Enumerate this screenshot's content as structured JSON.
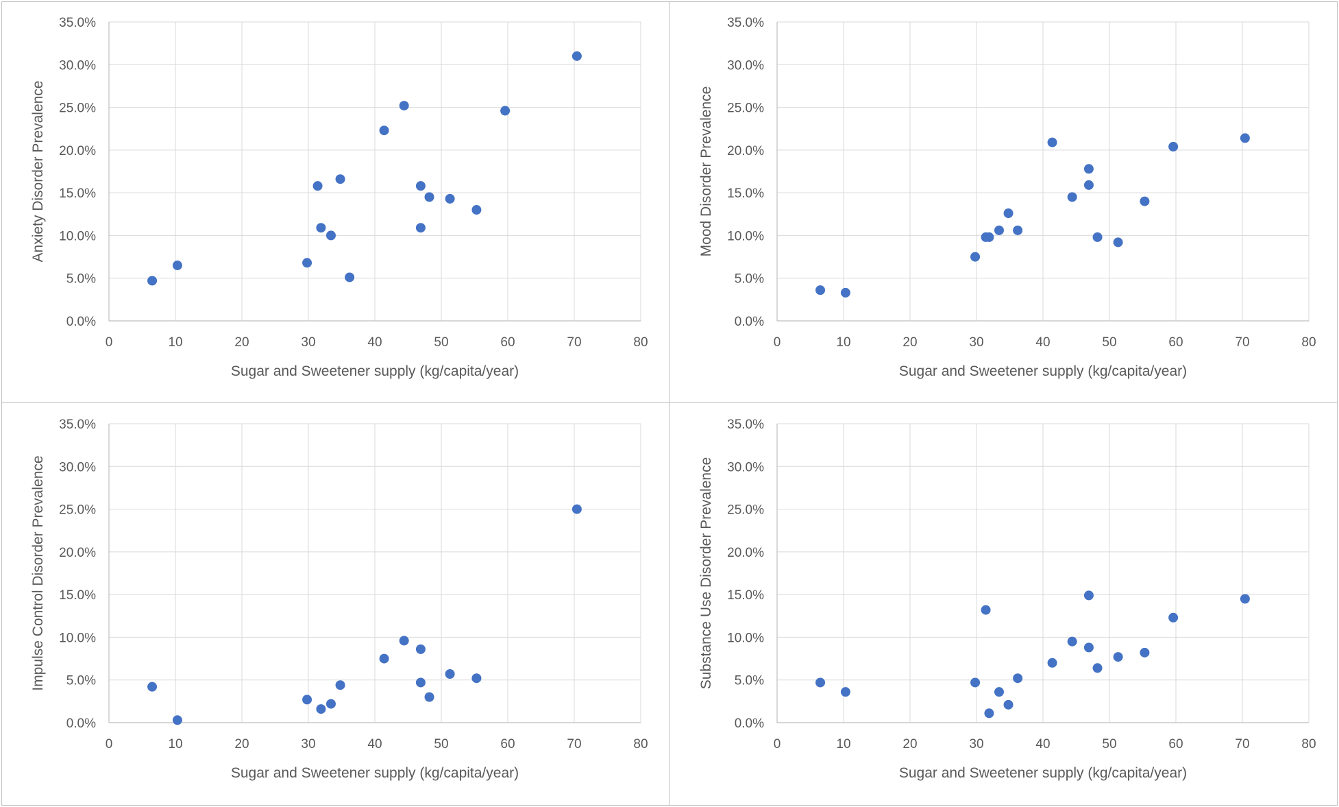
{
  "colors": {
    "marker": "#4472C4",
    "grid": "#d9d9d9",
    "axis": "#bfbfbf",
    "text": "#595959"
  },
  "chart_data": [
    {
      "type": "scatter",
      "title": "",
      "xlabel": "Sugar and Sweetener  supply (kg/capita/year)",
      "ylabel": "Anxiety Disorder Prevalence",
      "xlim": [
        0,
        80
      ],
      "ylim": [
        0,
        0.35
      ],
      "x_ticks": [
        "0",
        "10",
        "20",
        "30",
        "40",
        "50",
        "60",
        "70",
        "80"
      ],
      "y_ticks": [
        "0.0%",
        "5.0%",
        "10.0%",
        "15.0%",
        "20.0%",
        "25.0%",
        "30.0%",
        "35.0%"
      ],
      "points": [
        {
          "x": 6.5,
          "y": 0.047
        },
        {
          "x": 10.3,
          "y": 0.065
        },
        {
          "x": 29.8,
          "y": 0.068
        },
        {
          "x": 31.4,
          "y": 0.158
        },
        {
          "x": 31.9,
          "y": 0.109
        },
        {
          "x": 33.4,
          "y": 0.1
        },
        {
          "x": 34.8,
          "y": 0.166
        },
        {
          "x": 36.2,
          "y": 0.051
        },
        {
          "x": 41.4,
          "y": 0.223
        },
        {
          "x": 44.4,
          "y": 0.252
        },
        {
          "x": 46.9,
          "y": 0.158
        },
        {
          "x": 46.9,
          "y": 0.109
        },
        {
          "x": 48.2,
          "y": 0.145
        },
        {
          "x": 51.3,
          "y": 0.143
        },
        {
          "x": 55.3,
          "y": 0.13
        },
        {
          "x": 59.6,
          "y": 0.246
        },
        {
          "x": 70.4,
          "y": 0.31
        }
      ]
    },
    {
      "type": "scatter",
      "title": "",
      "xlabel": "Sugar and Sweetener  supply (kg/capita/year)",
      "ylabel": "Mood Disorder Prevalence",
      "xlim": [
        0,
        80
      ],
      "ylim": [
        0,
        0.35
      ],
      "x_ticks": [
        "0",
        "10",
        "20",
        "30",
        "40",
        "50",
        "60",
        "70",
        "80"
      ],
      "y_ticks": [
        "0.0%",
        "5.0%",
        "10.0%",
        "15.0%",
        "20.0%",
        "25.0%",
        "30.0%",
        "35.0%"
      ],
      "points": [
        {
          "x": 6.5,
          "y": 0.036
        },
        {
          "x": 10.3,
          "y": 0.033
        },
        {
          "x": 29.8,
          "y": 0.075
        },
        {
          "x": 31.4,
          "y": 0.098
        },
        {
          "x": 31.9,
          "y": 0.098
        },
        {
          "x": 33.4,
          "y": 0.106
        },
        {
          "x": 34.8,
          "y": 0.126
        },
        {
          "x": 36.2,
          "y": 0.106
        },
        {
          "x": 41.4,
          "y": 0.209
        },
        {
          "x": 44.4,
          "y": 0.145
        },
        {
          "x": 46.9,
          "y": 0.178
        },
        {
          "x": 46.9,
          "y": 0.159
        },
        {
          "x": 48.2,
          "y": 0.098
        },
        {
          "x": 51.3,
          "y": 0.092
        },
        {
          "x": 55.3,
          "y": 0.14
        },
        {
          "x": 59.6,
          "y": 0.204
        },
        {
          "x": 70.4,
          "y": 0.214
        }
      ]
    },
    {
      "type": "scatter",
      "title": "",
      "xlabel": "Sugar and Sweetener  supply (kg/capita/year)",
      "ylabel": "Impulse Control Disorder Prevalence",
      "xlim": [
        0,
        80
      ],
      "ylim": [
        0,
        0.35
      ],
      "x_ticks": [
        "0",
        "10",
        "20",
        "30",
        "40",
        "50",
        "60",
        "70",
        "80"
      ],
      "y_ticks": [
        "0.0%",
        "5.0%",
        "10.0%",
        "15.0%",
        "20.0%",
        "25.0%",
        "30.0%",
        "35.0%"
      ],
      "points": [
        {
          "x": 6.5,
          "y": 0.042
        },
        {
          "x": 10.3,
          "y": 0.003
        },
        {
          "x": 29.8,
          "y": 0.027
        },
        {
          "x": 31.9,
          "y": 0.016
        },
        {
          "x": 33.4,
          "y": 0.022
        },
        {
          "x": 34.8,
          "y": 0.044
        },
        {
          "x": 41.4,
          "y": 0.075
        },
        {
          "x": 44.4,
          "y": 0.096
        },
        {
          "x": 46.9,
          "y": 0.086
        },
        {
          "x": 46.9,
          "y": 0.047
        },
        {
          "x": 48.2,
          "y": 0.03
        },
        {
          "x": 51.3,
          "y": 0.057
        },
        {
          "x": 55.3,
          "y": 0.052
        },
        {
          "x": 70.4,
          "y": 0.25
        }
      ]
    },
    {
      "type": "scatter",
      "title": "",
      "xlabel": "Sugar and Sweetener  supply (kg/capita/year)",
      "ylabel": "Substance Use Disorder Prevalence",
      "xlim": [
        0,
        80
      ],
      "ylim": [
        0,
        0.35
      ],
      "x_ticks": [
        "0",
        "10",
        "20",
        "30",
        "40",
        "50",
        "60",
        "70",
        "80"
      ],
      "y_ticks": [
        "0.0%",
        "5.0%",
        "10.0%",
        "15.0%",
        "20.0%",
        "25.0%",
        "30.0%",
        "35.0%"
      ],
      "points": [
        {
          "x": 6.5,
          "y": 0.047
        },
        {
          "x": 10.3,
          "y": 0.036
        },
        {
          "x": 29.8,
          "y": 0.047
        },
        {
          "x": 31.4,
          "y": 0.132
        },
        {
          "x": 31.9,
          "y": 0.011
        },
        {
          "x": 33.4,
          "y": 0.036
        },
        {
          "x": 34.8,
          "y": 0.021
        },
        {
          "x": 36.2,
          "y": 0.052
        },
        {
          "x": 41.4,
          "y": 0.07
        },
        {
          "x": 44.4,
          "y": 0.095
        },
        {
          "x": 46.9,
          "y": 0.149
        },
        {
          "x": 46.9,
          "y": 0.088
        },
        {
          "x": 48.2,
          "y": 0.064
        },
        {
          "x": 51.3,
          "y": 0.077
        },
        {
          "x": 55.3,
          "y": 0.082
        },
        {
          "x": 59.6,
          "y": 0.123
        },
        {
          "x": 70.4,
          "y": 0.145
        }
      ]
    }
  ]
}
